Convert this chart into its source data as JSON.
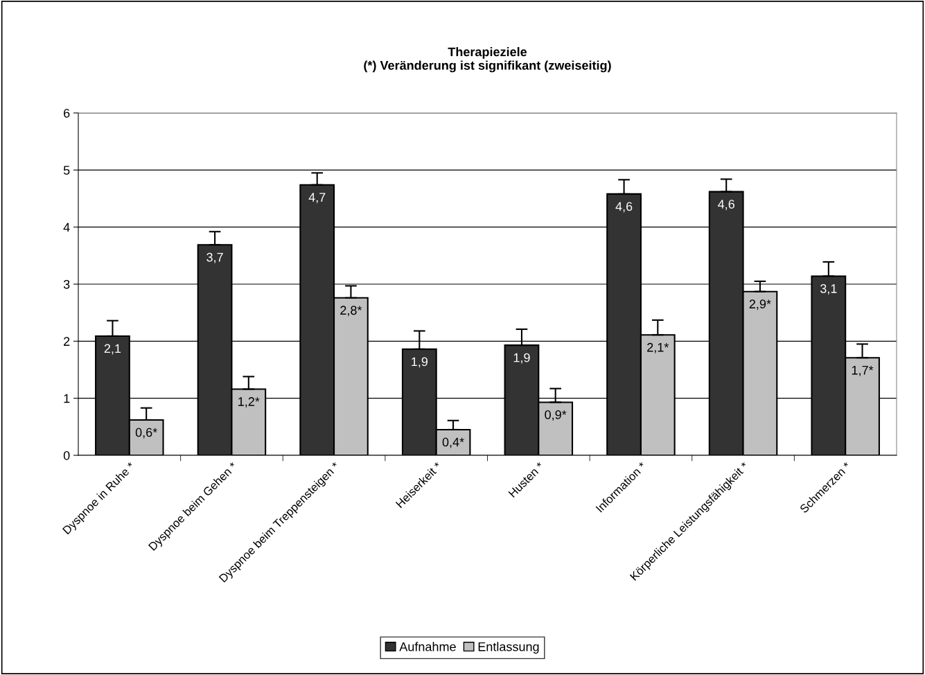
{
  "chart_data": {
    "type": "bar",
    "title": "Therapieziele\n(*) Veränderung ist signifikant (zweiseitig)",
    "categories": [
      "Dyspnoe in Ruhe *",
      "Dyspnoe beim Gehen *",
      "Dyspnoe beim Treppensteigen *",
      "Heiserkeit *",
      "Husten *",
      "Information *",
      "Körperliche Leistungsfähigkeit *",
      "Schmerzen *"
    ],
    "series": [
      {
        "name": "Aufnahme",
        "color": "#333333",
        "values": [
          2.09,
          3.69,
          4.74,
          1.86,
          1.93,
          4.58,
          4.62,
          3.14
        ],
        "errors": [
          [
            2.09,
            2.36
          ],
          [
            3.69,
            3.92
          ],
          [
            4.74,
            4.95
          ],
          [
            1.86,
            2.18
          ],
          [
            1.93,
            2.21
          ],
          [
            4.58,
            4.83
          ],
          [
            4.62,
            4.84
          ],
          [
            3.14,
            3.39
          ]
        ],
        "value_labels": [
          "2,1",
          "3,7",
          "4,7",
          "1,9",
          "1,9",
          "4,6",
          "4,6",
          "3,1"
        ]
      },
      {
        "name": "Entlassung",
        "color": "#c0c0c0",
        "values": [
          0.62,
          1.16,
          2.76,
          0.45,
          0.93,
          2.11,
          2.87,
          1.71
        ],
        "errors": [
          [
            0.62,
            0.83
          ],
          [
            1.16,
            1.38
          ],
          [
            2.76,
            2.97
          ],
          [
            0.45,
            0.61
          ],
          [
            0.93,
            1.17
          ],
          [
            2.11,
            2.37
          ],
          [
            2.87,
            3.05
          ],
          [
            1.71,
            1.95
          ]
        ],
        "value_labels": [
          "0,6*",
          "1,2*",
          "2,8*",
          "0,4*",
          "0,9*",
          "2,1*",
          "2,9*",
          "1,7*"
        ]
      }
    ],
    "ylim": [
      0,
      6
    ],
    "yticks": [
      0,
      1,
      2,
      3,
      4,
      5,
      6
    ],
    "grid": "y",
    "legend": "bottom"
  }
}
